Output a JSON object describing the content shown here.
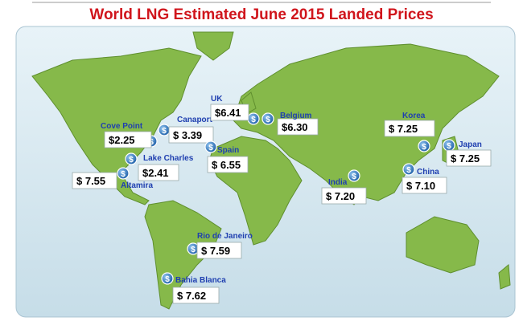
{
  "title": "World LNG Estimated June 2015 Landed Prices",
  "locations": [
    {
      "name": "Canaport",
      "price": "$ 3.39"
    },
    {
      "name": "Cove Point",
      "price": "$2.25"
    },
    {
      "name": "Lake Charles",
      "price": "$2.41"
    },
    {
      "name": "Altamira",
      "price": "$ 7.55"
    },
    {
      "name": "UK",
      "price": "$6.41"
    },
    {
      "name": "Belgium",
      "price": "$6.30"
    },
    {
      "name": "Spain",
      "price": "$ 6.55"
    },
    {
      "name": "India",
      "price": "$ 7.20"
    },
    {
      "name": "Korea",
      "price": "$ 7.25"
    },
    {
      "name": "Japan",
      "price": "$ 7.25"
    },
    {
      "name": "China",
      "price": "$ 7.10"
    },
    {
      "name": "Rio de Janeiro",
      "price": "$ 7.59"
    },
    {
      "name": "Bahia Blanca",
      "price": "$ 7.62"
    }
  ]
}
